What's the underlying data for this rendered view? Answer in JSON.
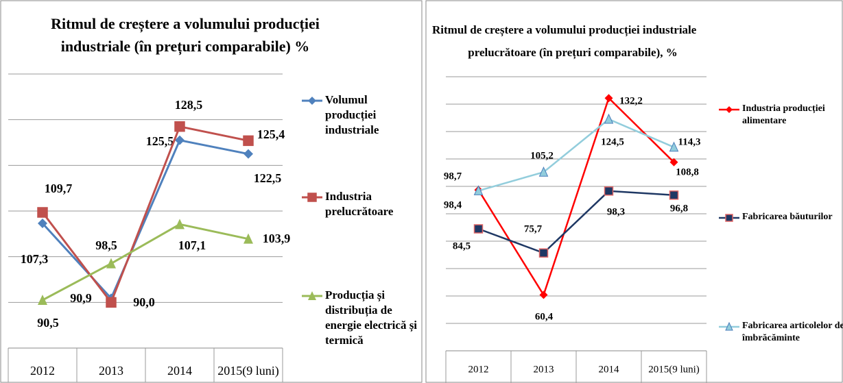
{
  "chart_data": [
    {
      "type": "line",
      "title": [
        "Ritmul de creștere a volumului producției",
        "industriale (în prețuri comparabile) %"
      ],
      "categories": [
        "2012",
        "2013",
        "2014",
        "2015(9 luni)"
      ],
      "ylim": [
        80,
        140
      ],
      "yticks": [
        80,
        90,
        100,
        110,
        120,
        130,
        140
      ],
      "grid": true,
      "series": [
        {
          "name": "Volumul producției industriale",
          "color": "#4f81bd",
          "marker": "diamond",
          "values": [
            107.3,
            90.9,
            125.5,
            122.5
          ],
          "value_labels": [
            "107,3",
            "90,9",
            "125,5",
            "122,5"
          ]
        },
        {
          "name": "Industria prelucrătoare",
          "color": "#c0504d",
          "marker": "square",
          "values": [
            109.7,
            90.0,
            128.5,
            125.4
          ],
          "value_labels": [
            "109,7",
            "90,0",
            "128,5",
            "125,4"
          ]
        },
        {
          "name": "Producția și distribuția de energie electrică și termică",
          "color": "#9bbb59",
          "marker": "triangle",
          "values": [
            90.5,
            98.5,
            107.1,
            103.9
          ],
          "value_labels": [
            "90,5",
            "98,5",
            "107,1",
            "103,9"
          ]
        }
      ]
    },
    {
      "type": "line",
      "title": [
        "Ritmul de creștere a volumului producției industriale",
        "prelucrătoare (în prețuri comparabile), %"
      ],
      "categories": [
        "2012",
        "2013",
        "2014",
        "2015(9 luni)"
      ],
      "ylim": [
        40,
        140
      ],
      "yticks": [
        40,
        50,
        60,
        70,
        80,
        90,
        100,
        110,
        120,
        130,
        140
      ],
      "grid": true,
      "series": [
        {
          "name": "Industria producției alimentare",
          "color": "#ff0000",
          "marker": "diamond",
          "values": [
            98.7,
            60.4,
            132.2,
            108.8
          ],
          "value_labels": [
            "98,7",
            "60,4",
            "132,2",
            "108,8"
          ]
        },
        {
          "name": "Fabricarea băuturilor",
          "color": "#1f3864",
          "marker": "square",
          "values": [
            84.5,
            75.7,
            98.3,
            96.8
          ],
          "value_labels": [
            "84,5",
            "75,7",
            "98,3",
            "96,8"
          ]
        },
        {
          "name": "Fabricarea articolelor de îmbrăcăminte",
          "color": "#92cddc",
          "marker": "triangle",
          "values": [
            98.4,
            105.2,
            124.5,
            114.3
          ],
          "value_labels": [
            "98,4",
            "105,2",
            "124,5",
            "114,3"
          ]
        }
      ]
    }
  ]
}
